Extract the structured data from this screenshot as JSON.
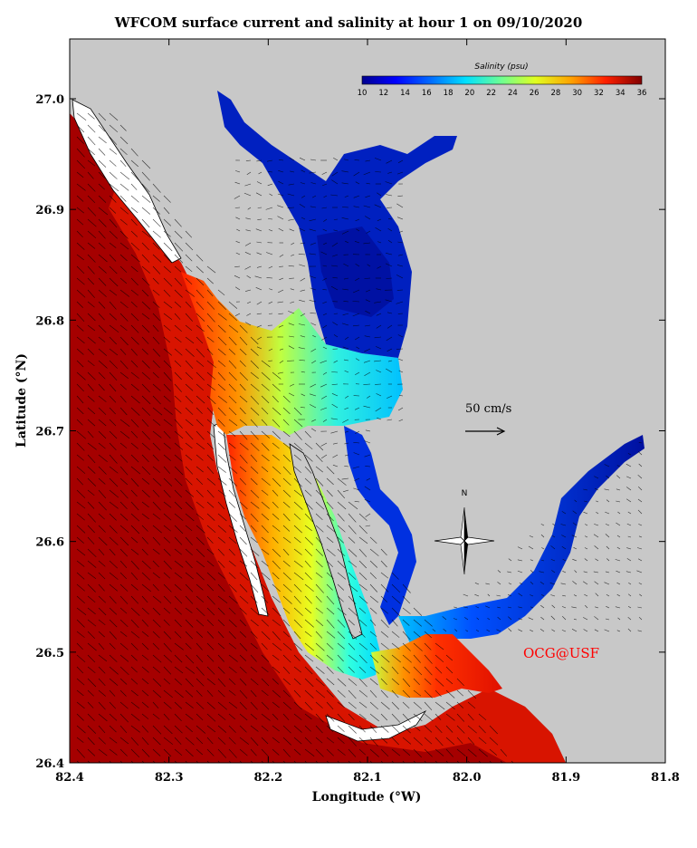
{
  "title": "WFCOM surface current and salinity at hour 1 on 09/10/2020",
  "x_axis": {
    "label": "Longitude (°W)",
    "ticks": [
      "82.4",
      "82.3",
      "82.2",
      "82.1",
      "82.0",
      "81.9",
      "81.8"
    ]
  },
  "y_axis": {
    "label": "Latitude (°N)",
    "ticks": [
      "26.4",
      "26.5",
      "26.6",
      "26.7",
      "26.8",
      "26.9",
      "27.0"
    ]
  },
  "colorbar": {
    "title": "Salinity (psu)",
    "ticks": [
      "10",
      "12",
      "14",
      "16",
      "18",
      "20",
      "22",
      "24",
      "26",
      "28",
      "30",
      "32",
      "34",
      "36"
    ]
  },
  "scale_arrow": {
    "label": "50 cm/s"
  },
  "compass": {
    "label": "N"
  },
  "credit": "OCG@USF",
  "colors": {
    "land": "#c8c8c8",
    "ocean_high_salinity": "#a50000",
    "gulf_coastal": "#ff3000",
    "bay_mid": "#20e0ff",
    "river_low": "#00129a",
    "credit_text": "#ff0000"
  }
}
